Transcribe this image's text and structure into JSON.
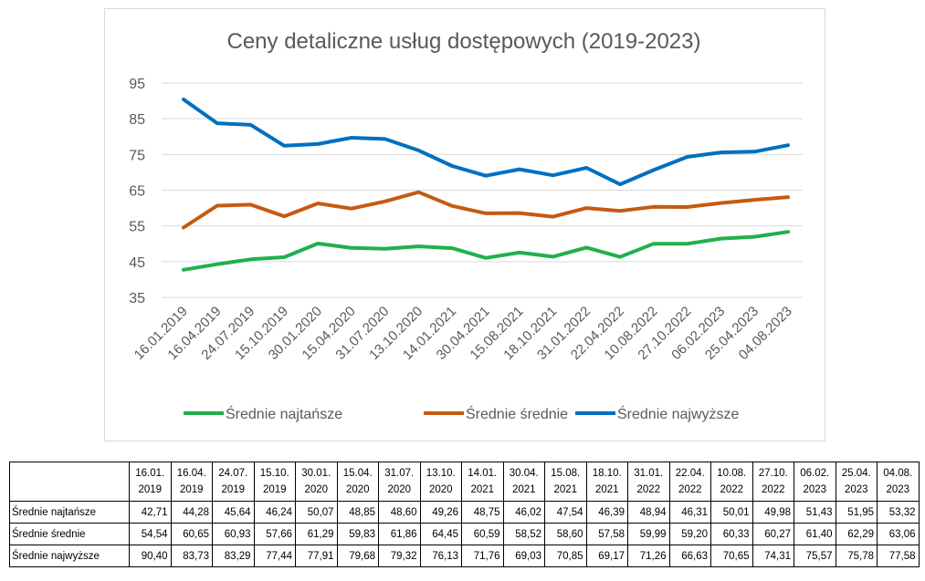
{
  "chart_data": {
    "type": "line",
    "title": "Ceny detaliczne usług dostępowych (2019-2023)",
    "x": [
      "16.01.2019",
      "16.04.2019",
      "24.07.2019",
      "15.10.2019",
      "30.01.2020",
      "15.04.2020",
      "31.07.2020",
      "13.10.2020",
      "14.01.2021",
      "30.04.2021",
      "15.08.2021",
      "18.10.2021",
      "31.01.2022",
      "22.04.2022",
      "10.08.2022",
      "27.10.2022",
      "06.02.2023",
      "25.04.2023",
      "04.08.2023"
    ],
    "ylim": [
      35,
      95
    ],
    "yticks": [
      "35",
      "45",
      "55",
      "65",
      "75",
      "85",
      "95"
    ],
    "grid": true,
    "legend_position": "bottom",
    "series": [
      {
        "name": "Średnie najtańsze",
        "color": "#21b04b",
        "values": [
          42.71,
          44.28,
          45.64,
          46.24,
          50.07,
          48.85,
          48.6,
          49.26,
          48.75,
          46.02,
          47.54,
          46.39,
          48.94,
          46.31,
          50.01,
          49.98,
          51.43,
          51.95,
          53.32
        ]
      },
      {
        "name": "Średnie średnie",
        "color": "#c55a11",
        "values": [
          54.54,
          60.65,
          60.93,
          57.66,
          61.29,
          59.83,
          61.86,
          64.45,
          60.59,
          58.52,
          58.6,
          57.58,
          59.99,
          59.2,
          60.33,
          60.27,
          61.4,
          62.29,
          63.06
        ]
      },
      {
        "name": "Średnie najwyższe",
        "color": "#0070c0",
        "values": [
          90.4,
          83.73,
          83.29,
          77.44,
          77.91,
          79.68,
          79.32,
          76.13,
          71.76,
          69.03,
          70.85,
          69.17,
          71.26,
          66.63,
          70.65,
          74.31,
          75.57,
          75.78,
          77.58
        ]
      }
    ]
  },
  "table": {
    "headers": [
      [
        "16.01.",
        "2019"
      ],
      [
        "16.04.",
        "2019"
      ],
      [
        "24.07.",
        "2019"
      ],
      [
        "15.10.",
        "2019"
      ],
      [
        "30.01.",
        "2020"
      ],
      [
        "15.04.",
        "2020"
      ],
      [
        "31.07.",
        "2020"
      ],
      [
        "13.10.",
        "2020"
      ],
      [
        "14.01.",
        "2021"
      ],
      [
        "30.04.",
        "2021"
      ],
      [
        "15.08.",
        "2021"
      ],
      [
        "18.10.",
        "2021"
      ],
      [
        "31.01.",
        "2022"
      ],
      [
        "22.04.",
        "2022"
      ],
      [
        "10.08.",
        "2022"
      ],
      [
        "27.10.",
        "2022"
      ],
      [
        "06.02.",
        "2023"
      ],
      [
        "25.04.",
        "2023"
      ],
      [
        "04.08.",
        "2023"
      ]
    ],
    "rows": [
      {
        "label": "Średnie najtańsze",
        "cells": [
          "42,71",
          "44,28",
          "45,64",
          "46,24",
          "50,07",
          "48,85",
          "48,60",
          "49,26",
          "48,75",
          "46,02",
          "47,54",
          "46,39",
          "48,94",
          "46,31",
          "50,01",
          "49,98",
          "51,43",
          "51,95",
          "53,32"
        ]
      },
      {
        "label": "Średnie średnie",
        "cells": [
          "54,54",
          "60,65",
          "60,93",
          "57,66",
          "61,29",
          "59,83",
          "61,86",
          "64,45",
          "60,59",
          "58,52",
          "58,60",
          "57,58",
          "59,99",
          "59,20",
          "60,33",
          "60,27",
          "61,40",
          "62,29",
          "63,06"
        ]
      },
      {
        "label": "Średnie najwyższe",
        "cells": [
          "90,40",
          "83,73",
          "83,29",
          "77,44",
          "77,91",
          "79,68",
          "79,32",
          "76,13",
          "71,76",
          "69,03",
          "70,85",
          "69,17",
          "71,26",
          "66,63",
          "70,65",
          "74,31",
          "75,57",
          "75,78",
          "77,58"
        ]
      }
    ]
  }
}
